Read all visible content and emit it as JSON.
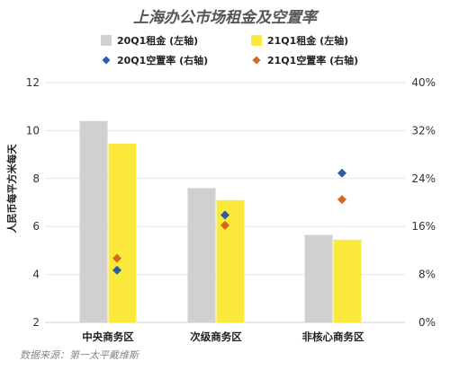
{
  "chart_data": {
    "type": "bar",
    "title": "上海办公市场租金及空置率",
    "ylabel": "人民币每平方米每天",
    "categories": [
      "中央商务区",
      "次级商务区",
      "非核心商务区"
    ],
    "ylim_left": [
      2,
      12
    ],
    "yticks_left": [
      "2",
      "4",
      "6",
      "8",
      "10",
      "12"
    ],
    "ylim_right": [
      0,
      40
    ],
    "yticks_right": [
      "0%",
      "8%",
      "16%",
      "24%",
      "32%",
      "40%"
    ],
    "bar_series": [
      {
        "name": "20Q1租金 (左轴)",
        "color": "#d0d0d0",
        "values": [
          10.4,
          7.6,
          5.65
        ]
      },
      {
        "name": "21Q1租金 (左轴)",
        "color": "#fbe93c",
        "values": [
          9.45,
          7.1,
          5.45
        ]
      }
    ],
    "point_series": [
      {
        "name": "20Q1空置率 (右轴)",
        "color": "#2f5aa8",
        "values": [
          8.7,
          17.9,
          24.9
        ]
      },
      {
        "name": "21Q1空置率 (右轴)",
        "color": "#d8661c",
        "values": [
          10.7,
          16.2,
          20.5
        ]
      }
    ],
    "grid": true,
    "legend": "top-center",
    "source": "数据来源：第一太平戴维斯"
  }
}
